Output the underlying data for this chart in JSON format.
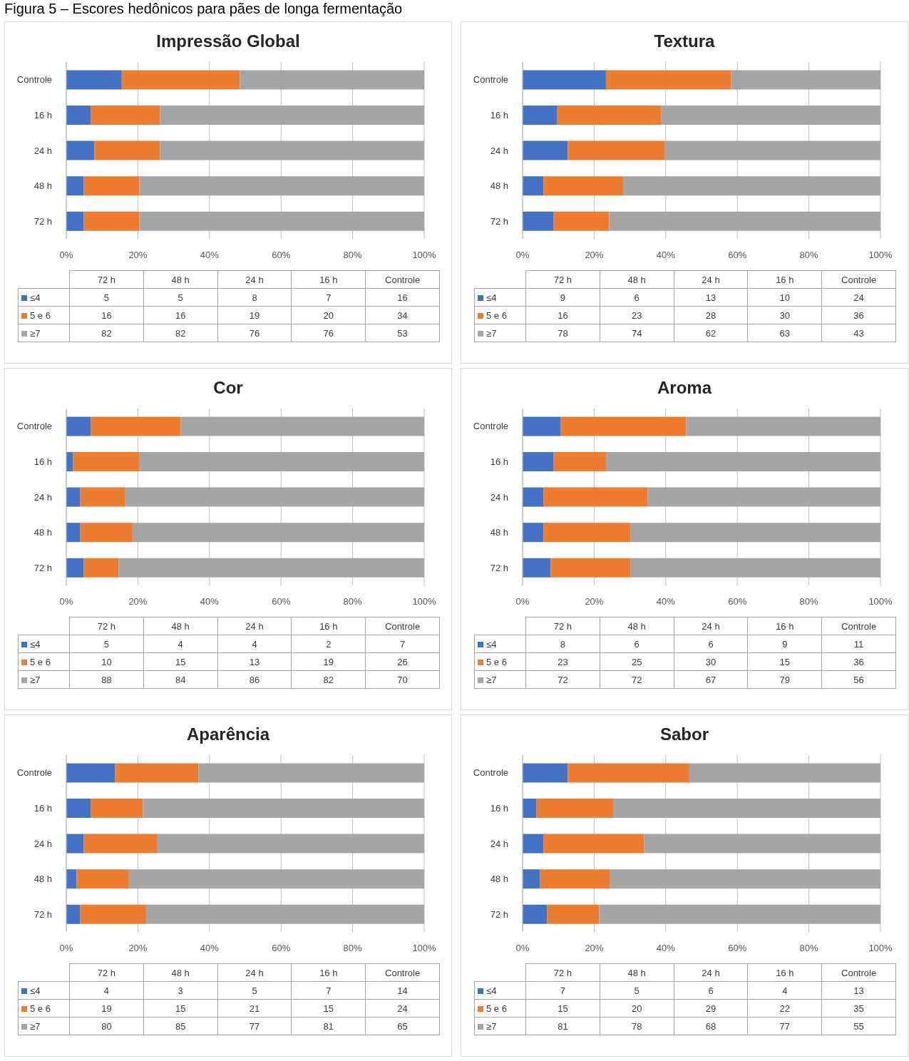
{
  "chart_data": [
    {
      "type": "other",
      "title": "Figura 5 – Escores hedônicos para pães de longa fermentação"
    },
    {
      "type": "bar",
      "title": "Impressão Global",
      "orientation": "horizontal",
      "stacked": true,
      "categories": [
        "Controle",
        "16 h",
        "24 h",
        "48 h",
        "72 h"
      ],
      "series": [
        {
          "name": "≤4",
          "color": "#4472c4",
          "values": [
            15.5,
            6.8,
            7.8,
            4.9,
            4.9
          ]
        },
        {
          "name": "5 e 6",
          "color": "#ed7d31",
          "values": [
            33.0,
            19.4,
            18.4,
            15.5,
            15.5
          ]
        },
        {
          "name": "≥7",
          "color": "#a5a5a5",
          "values": [
            51.5,
            73.8,
            73.8,
            79.6,
            79.6
          ]
        }
      ],
      "xlim": [
        0,
        100
      ],
      "xticks": [
        {
          "value": 0,
          "label": "0%"
        },
        {
          "value": 20,
          "label": "20%"
        },
        {
          "value": 40,
          "label": "40%"
        },
        {
          "value": 60,
          "label": "60%"
        },
        {
          "value": 80,
          "label": "80%"
        },
        {
          "value": 100,
          "label": "100%"
        }
      ],
      "grid": "x",
      "legend": "bottom",
      "annotations": [
        "5",
        "5",
        "8",
        "7",
        "16",
        "16",
        "16",
        "19",
        "20",
        "34",
        "82",
        "82",
        "76",
        "76",
        "53"
      ]
    },
    {
      "type": "bar",
      "title": "Textura",
      "orientation": "horizontal",
      "stacked": true,
      "categories": [
        "Controle",
        "16 h",
        "24 h",
        "48 h",
        "72 h"
      ],
      "series": [
        {
          "name": "≤4",
          "color": "#4472c4",
          "values": [
            23.3,
            9.7,
            12.6,
            5.8,
            8.7
          ]
        },
        {
          "name": "5 e 6",
          "color": "#ed7d31",
          "values": [
            35.0,
            29.1,
            27.2,
            22.3,
            15.5
          ]
        },
        {
          "name": "≥7",
          "color": "#a5a5a5",
          "values": [
            41.7,
            61.2,
            60.2,
            71.9,
            75.8
          ]
        }
      ],
      "xlim": [
        0,
        100
      ],
      "xticks": [
        {
          "value": 0,
          "label": "0%"
        },
        {
          "value": 20,
          "label": "20%"
        },
        {
          "value": 40,
          "label": "40%"
        },
        {
          "value": 60,
          "label": "60%"
        },
        {
          "value": 80,
          "label": "80%"
        },
        {
          "value": 100,
          "label": "100%"
        }
      ],
      "grid": "x",
      "legend": "bottom",
      "annotations": [
        "9",
        "6",
        "13",
        "10",
        "24",
        "16",
        "23",
        "28",
        "30",
        "36",
        "78",
        "74",
        "62",
        "63",
        "43"
      ]
    },
    {
      "type": "bar",
      "title": "Cor",
      "orientation": "horizontal",
      "stacked": true,
      "categories": [
        "Controle",
        "16 h",
        "24 h",
        "48 h",
        "72 h"
      ],
      "series": [
        {
          "name": "≤4",
          "color": "#4472c4",
          "values": [
            6.8,
            1.9,
            3.9,
            3.9,
            4.9
          ]
        },
        {
          "name": "5 e 6",
          "color": "#ed7d31",
          "values": [
            25.2,
            18.4,
            12.6,
            14.6,
            9.7
          ]
        },
        {
          "name": "≥7",
          "color": "#a5a5a5",
          "values": [
            68.0,
            79.7,
            83.5,
            81.5,
            85.4
          ]
        }
      ],
      "xlim": [
        0,
        100
      ],
      "xticks": [
        {
          "value": 0,
          "label": "0%"
        },
        {
          "value": 20,
          "label": "20%"
        },
        {
          "value": 40,
          "label": "40%"
        },
        {
          "value": 60,
          "label": "60%"
        },
        {
          "value": 80,
          "label": "80%"
        },
        {
          "value": 100,
          "label": "100%"
        }
      ],
      "grid": "x",
      "legend": "bottom",
      "annotations": [
        "5",
        "4",
        "4",
        "2",
        "7",
        "10",
        "15",
        "13",
        "19",
        "26",
        "88",
        "84",
        "86",
        "82",
        "70"
      ]
    },
    {
      "type": "bar",
      "title": "Aroma",
      "orientation": "horizontal",
      "stacked": true,
      "categories": [
        "Controle",
        "16 h",
        "24 h",
        "48 h",
        "72 h"
      ],
      "series": [
        {
          "name": "≤4",
          "color": "#4472c4",
          "values": [
            10.7,
            8.7,
            5.8,
            5.8,
            7.8
          ]
        },
        {
          "name": "5 e 6",
          "color": "#ed7d31",
          "values": [
            35.0,
            14.6,
            29.1,
            24.3,
            22.3
          ]
        },
        {
          "name": "≥7",
          "color": "#a5a5a5",
          "values": [
            54.3,
            76.7,
            65.1,
            69.9,
            69.9
          ]
        }
      ],
      "xlim": [
        0,
        100
      ],
      "xticks": [
        {
          "value": 0,
          "label": "0%"
        },
        {
          "value": 20,
          "label": "20%"
        },
        {
          "value": 40,
          "label": "40%"
        },
        {
          "value": 60,
          "label": "60%"
        },
        {
          "value": 80,
          "label": "80%"
        },
        {
          "value": 100,
          "label": "100%"
        }
      ],
      "grid": "x",
      "legend": "bottom",
      "annotations": [
        "8",
        "6",
        "6",
        "9",
        "11",
        "23",
        "25",
        "30",
        "15",
        "36",
        "72",
        "72",
        "67",
        "79",
        "56"
      ]
    },
    {
      "type": "bar",
      "title": "Aparência",
      "orientation": "horizontal",
      "stacked": true,
      "categories": [
        "Controle",
        "16 h",
        "24 h",
        "48 h",
        "72 h"
      ],
      "series": [
        {
          "name": "≤4",
          "color": "#4472c4",
          "values": [
            13.6,
            6.8,
            4.9,
            2.9,
            3.9
          ]
        },
        {
          "name": "5 e 6",
          "color": "#ed7d31",
          "values": [
            23.3,
            14.6,
            20.4,
            14.6,
            18.4
          ]
        },
        {
          "name": "≥7",
          "color": "#a5a5a5",
          "values": [
            63.1,
            78.6,
            74.7,
            82.5,
            77.7
          ]
        }
      ],
      "xlim": [
        0,
        100
      ],
      "xticks": [
        {
          "value": 0,
          "label": "0%"
        },
        {
          "value": 20,
          "label": "20%"
        },
        {
          "value": 40,
          "label": "40%"
        },
        {
          "value": 60,
          "label": "60%"
        },
        {
          "value": 80,
          "label": "80%"
        },
        {
          "value": 100,
          "label": "100%"
        }
      ],
      "grid": "x",
      "legend": "bottom",
      "annotations": [
        "4",
        "3",
        "5",
        "7",
        "14",
        "19",
        "15",
        "21",
        "15",
        "24",
        "80",
        "85",
        "77",
        "81",
        "65"
      ]
    },
    {
      "type": "bar",
      "title": "Sabor",
      "orientation": "horizontal",
      "stacked": true,
      "categories": [
        "Controle",
        "16 h",
        "24 h",
        "48 h",
        "72 h"
      ],
      "series": [
        {
          "name": "≤4",
          "color": "#4472c4",
          "values": [
            12.6,
            3.9,
            5.8,
            4.9,
            6.8
          ]
        },
        {
          "name": "5 e 6",
          "color": "#ed7d31",
          "values": [
            34.0,
            21.4,
            28.2,
            19.4,
            14.6
          ]
        },
        {
          "name": "≥7",
          "color": "#a5a5a5",
          "values": [
            53.4,
            74.7,
            66.0,
            75.7,
            78.6
          ]
        }
      ],
      "xlim": [
        0,
        100
      ],
      "xticks": [
        {
          "value": 0,
          "label": "0%"
        },
        {
          "value": 20,
          "label": "20%"
        },
        {
          "value": 40,
          "label": "40%"
        },
        {
          "value": 60,
          "label": "60%"
        },
        {
          "value": 80,
          "label": "80%"
        },
        {
          "value": 100,
          "label": "100%"
        }
      ],
      "grid": "x",
      "legend": "bottom",
      "annotations": [
        "7",
        "5",
        "6",
        "4",
        "13",
        "15",
        "20",
        "29",
        "22",
        "35",
        "81",
        "78",
        "68",
        "77",
        "55"
      ]
    }
  ]
}
